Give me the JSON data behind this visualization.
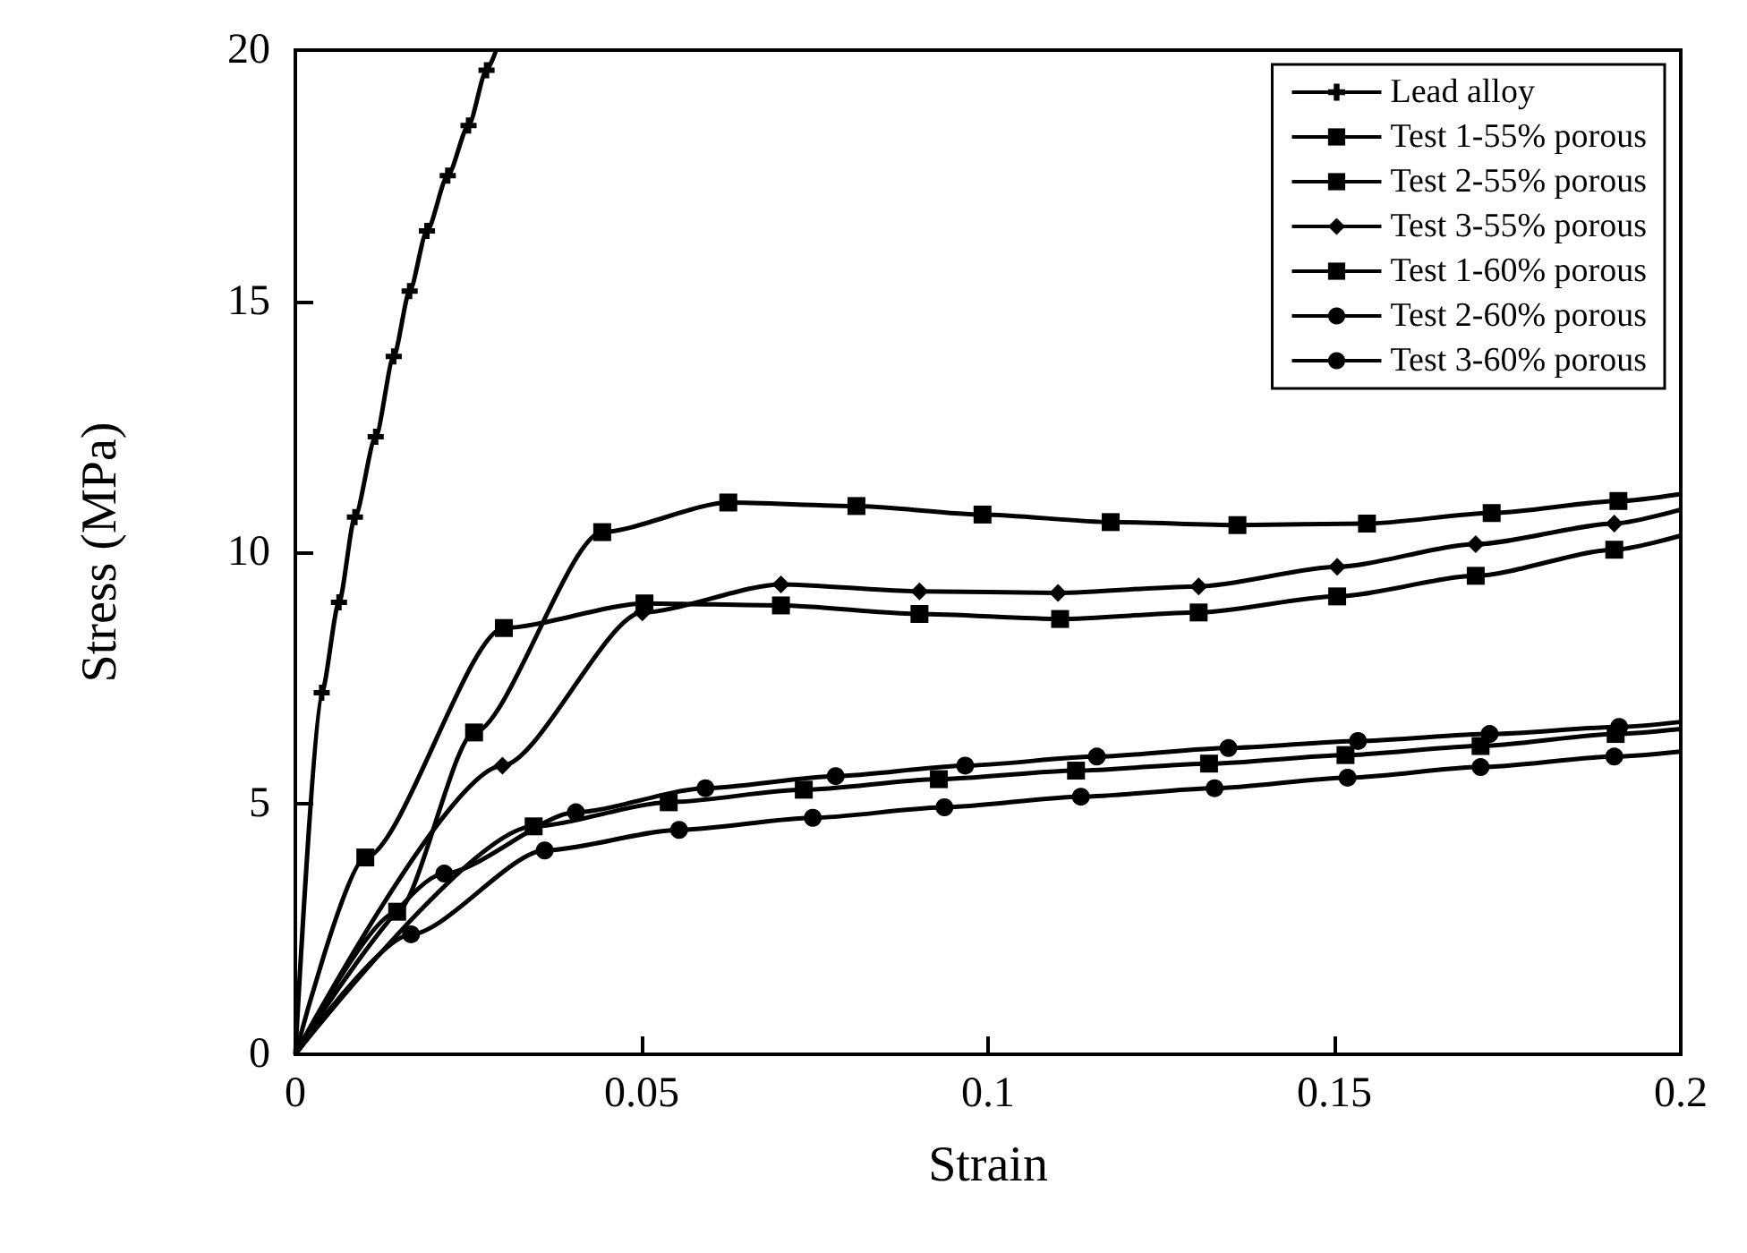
{
  "chart_data": {
    "type": "line",
    "xlabel": "Strain",
    "ylabel": "Stress (MPa)",
    "xlim": [
      0,
      0.2
    ],
    "xticks": [
      0,
      0.05,
      0.1,
      0.15,
      0.2
    ],
    "ylim": [
      0,
      20
    ],
    "yticks": [
      0,
      5,
      10,
      15,
      20
    ],
    "legend": "top right",
    "series": [
      {
        "name": "Lead alloy",
        "color": "#000000",
        "marker": "cross",
        "x": [
          0,
          0.0038,
          0.0063,
          0.0086,
          0.0116,
          0.0142,
          0.0165,
          0.019,
          0.022,
          0.025,
          0.0276,
          0.029
        ],
        "values": [
          0,
          7.2,
          9.0,
          10.7,
          12.3,
          13.9,
          15.2,
          16.4,
          17.5,
          18.5,
          19.6,
          20
        ]
      },
      {
        "name": "Test 1-55% porous",
        "color": "#000000",
        "marker": "square",
        "x": [
          0,
          0.0147,
          0.0258,
          0.0443,
          0.0625,
          0.081,
          0.0992,
          0.1177,
          0.136,
          0.1547,
          0.1727,
          0.191,
          0.2
        ],
        "values": [
          0,
          2.84,
          6.41,
          10.4,
          10.99,
          10.92,
          10.75,
          10.6,
          10.54,
          10.57,
          10.78,
          11.02,
          11.16
        ]
      },
      {
        "name": "Test 2-55% porous",
        "color": "#000000",
        "marker": "square",
        "x": [
          0,
          0.0101,
          0.0301,
          0.0504,
          0.0701,
          0.0901,
          0.1104,
          0.1304,
          0.1504,
          0.1704,
          0.1904,
          0.2
        ],
        "values": [
          0,
          3.92,
          8.49,
          8.98,
          8.94,
          8.77,
          8.67,
          8.8,
          9.12,
          9.53,
          10.05,
          10.33
        ]
      },
      {
        "name": "Test 3-55% porous",
        "color": "#000000",
        "marker": "diamond",
        "x": [
          0,
          0.0299,
          0.0501,
          0.0701,
          0.0901,
          0.1101,
          0.1304,
          0.1504,
          0.1704,
          0.1904,
          0.2
        ],
        "values": [
          0,
          5.75,
          8.8,
          9.36,
          9.22,
          9.19,
          9.32,
          9.71,
          10.16,
          10.57,
          10.85
        ]
      },
      {
        "name": "Test 1-60% porous",
        "color": "#000000",
        "marker": "square",
        "x": [
          0,
          0.0344,
          0.0539,
          0.0734,
          0.0929,
          0.1127,
          0.1319,
          0.1516,
          0.1711,
          0.1906,
          0.2
        ],
        "values": [
          0,
          4.54,
          5.02,
          5.27,
          5.48,
          5.65,
          5.79,
          5.96,
          6.14,
          6.38,
          6.48
        ]
      },
      {
        "name": "Test 2-60% porous",
        "color": "#000000",
        "marker": "circle",
        "x": [
          0,
          0.0215,
          0.0405,
          0.0592,
          0.078,
          0.0967,
          0.1157,
          0.1347,
          0.1534,
          0.1724,
          0.1911,
          0.2
        ],
        "values": [
          0,
          3.6,
          4.82,
          5.3,
          5.54,
          5.75,
          5.93,
          6.1,
          6.24,
          6.38,
          6.52,
          6.62
        ]
      },
      {
        "name": "Test 3-60% porous",
        "color": "#000000",
        "marker": "circle",
        "x": [
          0,
          0.0167,
          0.036,
          0.0554,
          0.0747,
          0.0937,
          0.1134,
          0.1327,
          0.1519,
          0.1711,
          0.1904,
          0.2
        ],
        "values": [
          0,
          2.39,
          4.06,
          4.47,
          4.71,
          4.92,
          5.13,
          5.3,
          5.51,
          5.72,
          5.93,
          6.03
        ]
      }
    ]
  }
}
